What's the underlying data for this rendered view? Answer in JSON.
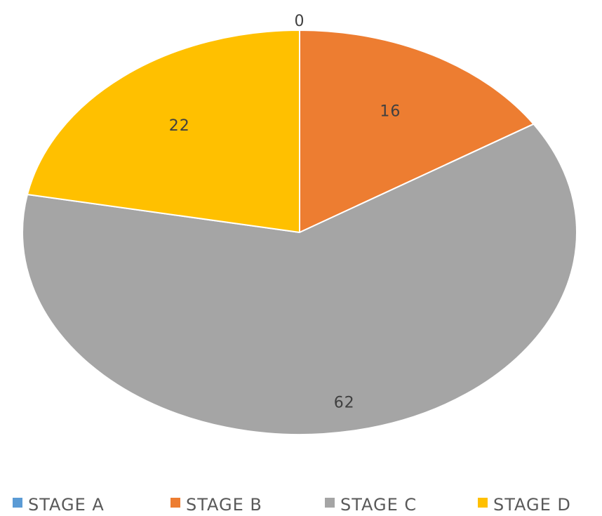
{
  "chart_data": {
    "type": "pie",
    "categories": [
      "STAGE A",
      "STAGE B",
      "STAGE C",
      "STAGE D"
    ],
    "values": [
      0,
      16,
      62,
      22
    ],
    "colors": [
      "#5B9BD5",
      "#ED7D31",
      "#A5A5A5",
      "#FFC000"
    ],
    "legend_position": "bottom",
    "data_labels": true
  }
}
